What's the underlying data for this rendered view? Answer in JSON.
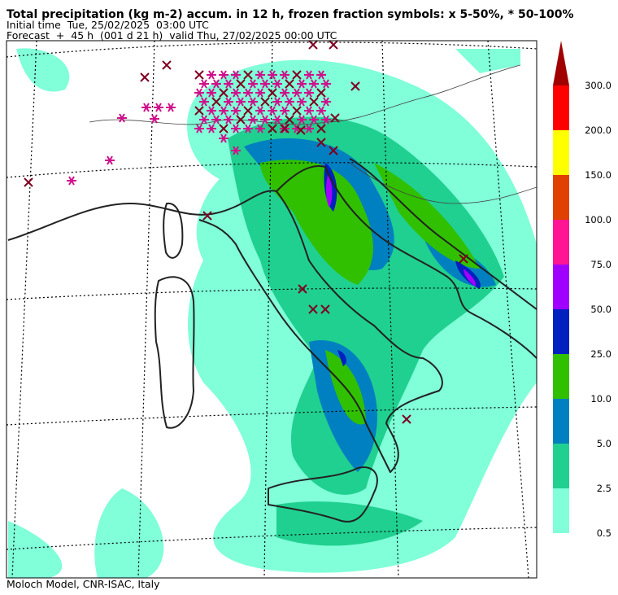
{
  "header": {
    "title": "Total precipitation (kg m-2) accum. in 12 h, frozen fraction symbols: x 5-50%, * 50-100%",
    "initial_time": "Initial time  Tue, 25/02/2025  03:00 UTC",
    "forecast": "Forecast  +  45 h  (001 d 21 h)  valid Thu, 27/02/2025 00:00 UTC"
  },
  "colorbar": {
    "extend_color": "#a00000",
    "levels": [
      {
        "label": "0.5",
        "color": "#80ffd8"
      },
      {
        "label": "2.5",
        "color": "#20d090"
      },
      {
        "label": "5.0",
        "color": "#0080c0"
      },
      {
        "label": "10.0",
        "color": "#30c000"
      },
      {
        "label": "25.0",
        "color": "#0020c0"
      },
      {
        "label": "50.0",
        "color": "#a000ff"
      },
      {
        "label": "75.0",
        "color": "#ff1493"
      },
      {
        "label": "100.0",
        "color": "#e04000"
      },
      {
        "label": "150.0",
        "color": "#ffff00"
      },
      {
        "label": "200.0",
        "color": "#ff0000"
      },
      {
        "label": "300.0",
        "color": null
      }
    ]
  },
  "footer": {
    "credit": "Moloch Model, CNR-ISAC, Italy"
  }
}
